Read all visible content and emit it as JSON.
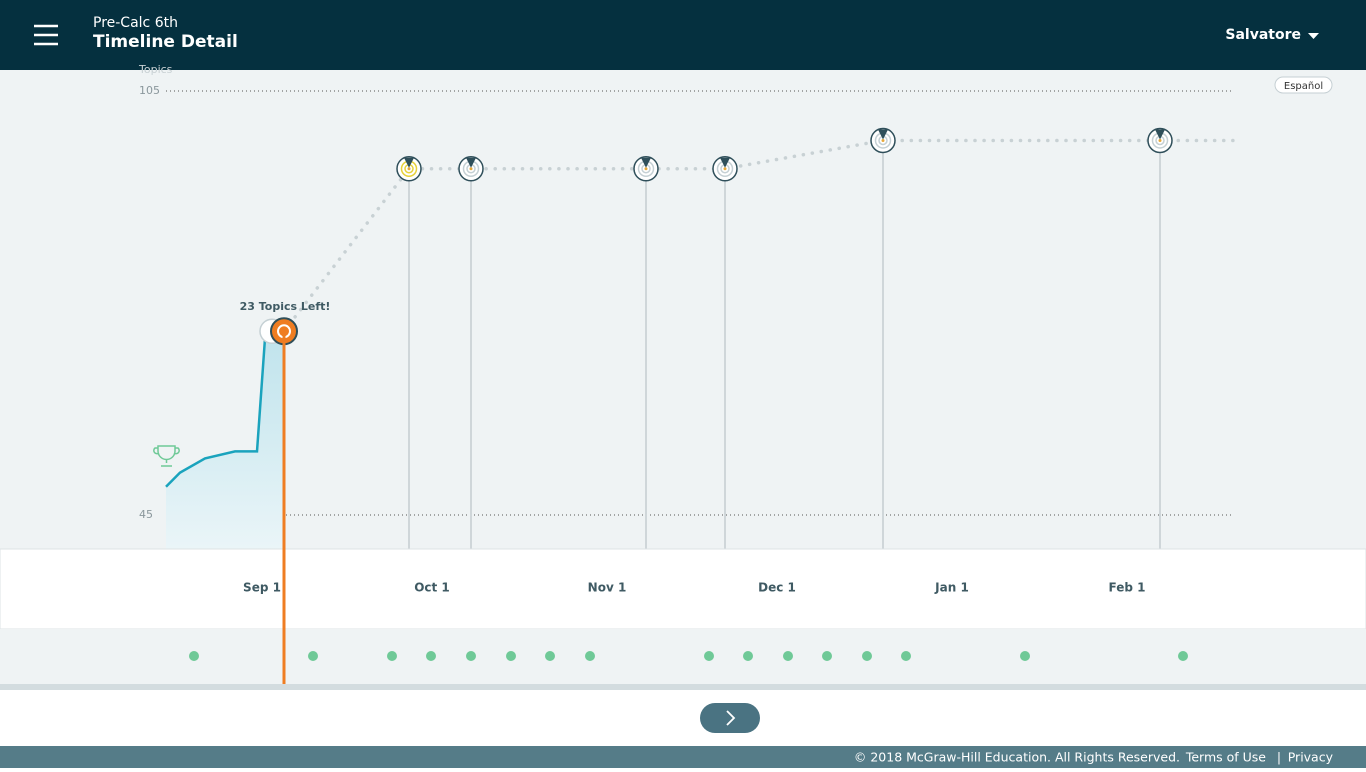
{
  "header": {
    "course": "Pre-Calc 6th",
    "title": "Timeline Detail",
    "user": "Salvatore"
  },
  "language_button": "Español",
  "chart_data": {
    "type": "line",
    "y_label": "Topics",
    "ylim": [
      45,
      105
    ],
    "yticks": [
      45,
      105
    ],
    "categories": [
      "Sep 1",
      "Oct 1",
      "Nov 1",
      "Dec 1",
      "Jan 1",
      "Feb 1"
    ],
    "progress": {
      "color": "#1aa3bd",
      "values": [
        49,
        51,
        53,
        54,
        54,
        70,
        71
      ]
    },
    "current": {
      "value": 71,
      "label": "23 Topics Left!",
      "color": "#ef7d22"
    },
    "milestones": {
      "color": "#2f4f5a",
      "values": [
        94,
        94,
        94,
        94,
        98,
        98
      ]
    }
  },
  "footer": {
    "copyright": "© 2018 McGraw-Hill Education. All Rights Reserved.",
    "links": [
      "Terms of Use",
      "Privacy"
    ]
  }
}
